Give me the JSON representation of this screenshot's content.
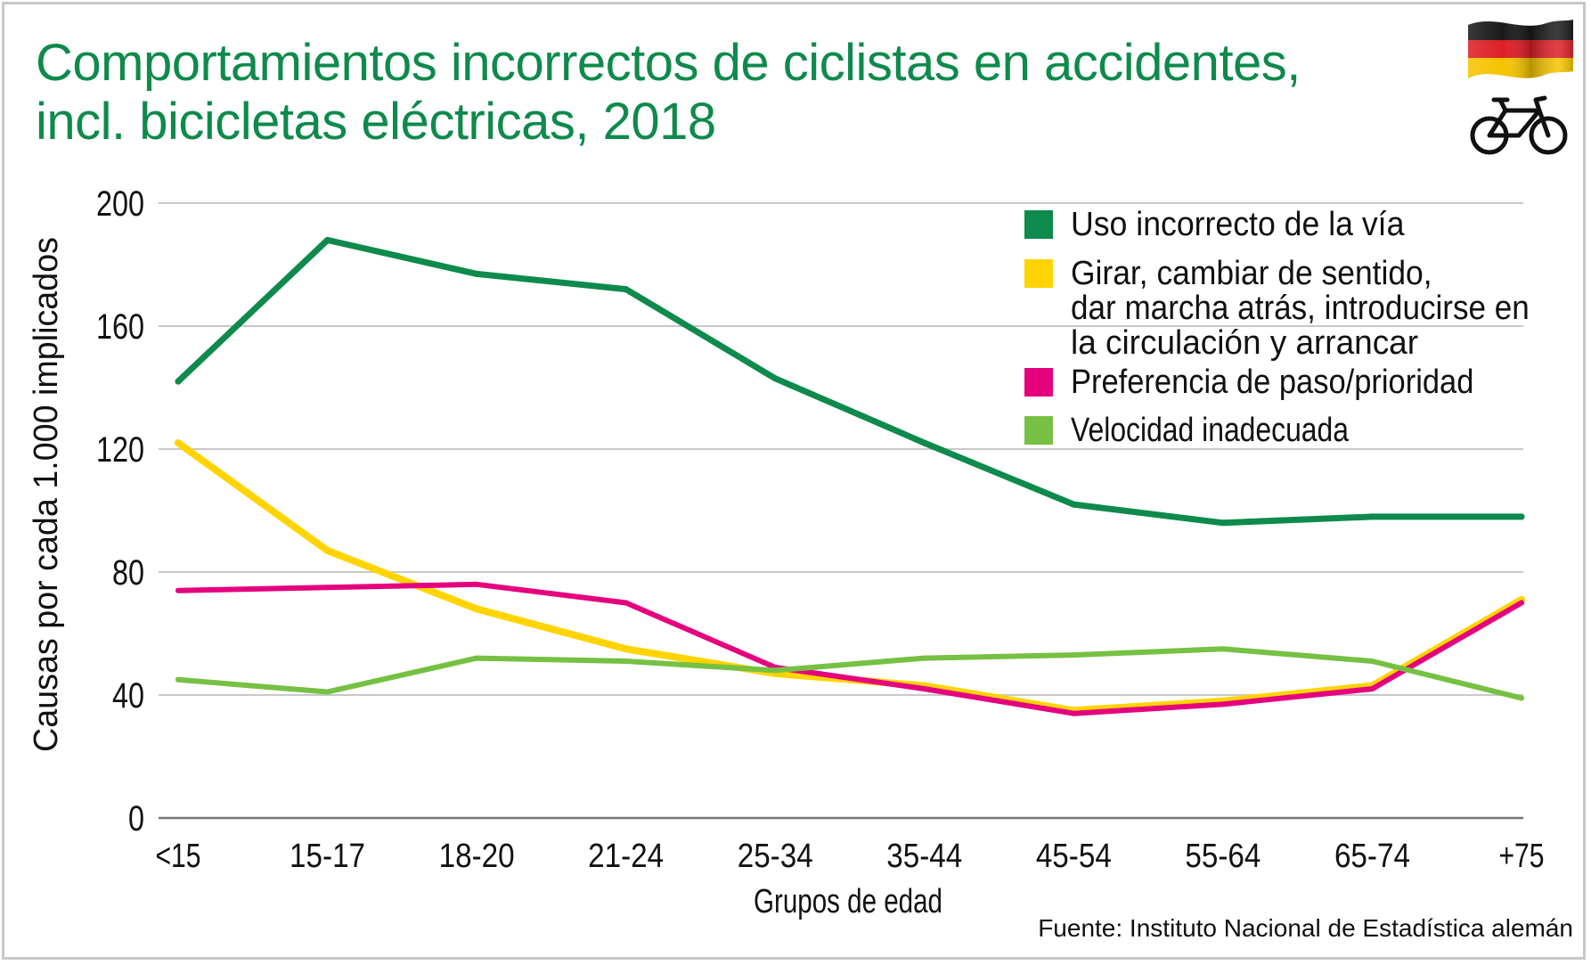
{
  "chart_data": {
    "type": "line",
    "title": "Comportamientos incorrectos de ciclistas en accidentes, incl. bicicletas eléctricas, 2018",
    "title_lines": [
      "Comportamientos incorrectos de ciclistas en accidentes,",
      "incl. bicicletas eléctricas, 2018"
    ],
    "xlabel": "Grupos de edad",
    "ylabel": "Causas por cada 1.000 implicados",
    "categories": [
      "<15",
      "15-17",
      "18-20",
      "21-24",
      "25-34",
      "35-44",
      "45-54",
      "55-64",
      "65-74",
      "+75"
    ],
    "ylim": [
      0,
      200
    ],
    "yticks": [
      0,
      40,
      80,
      120,
      160,
      200
    ],
    "grid": true,
    "legend_position": "top-right",
    "series": [
      {
        "name": "Uso incorrecto de la vía",
        "legend_lines": [
          "Uso incorrecto de la vía"
        ],
        "color": "#0e8a4c",
        "values": [
          142,
          188,
          177,
          172,
          143,
          122,
          102,
          96,
          98,
          98
        ]
      },
      {
        "name": "Girar, cambiar de sentido, dar marcha atrás, introducirse en la circulación y arrancar",
        "legend_lines": [
          "Girar, cambiar de sentido,",
          "dar marcha atrás, introducirse en",
          "la circulación y arrancar"
        ],
        "color": "#ffd400",
        "values": [
          122,
          87,
          68,
          55,
          47,
          43,
          35,
          38,
          43,
          71
        ]
      },
      {
        "name": "Preferencia de paso/prioridad",
        "legend_lines": [
          "Preferencia de paso/prioridad"
        ],
        "color": "#e5007e",
        "values": [
          74,
          75,
          76,
          70,
          49,
          42,
          34,
          37,
          42,
          70
        ]
      },
      {
        "name": "Velocidad inadecuada",
        "legend_lines": [
          "Velocidad inadecuada"
        ],
        "color": "#76c043",
        "values": [
          45,
          41,
          52,
          51,
          48,
          52,
          53,
          55,
          51,
          39
        ]
      }
    ]
  },
  "source": "Fuente: Instituto Nacional de Estadística alemán",
  "flag_icon": "germany-flag-icon",
  "bike_icon": "bicycle-icon"
}
